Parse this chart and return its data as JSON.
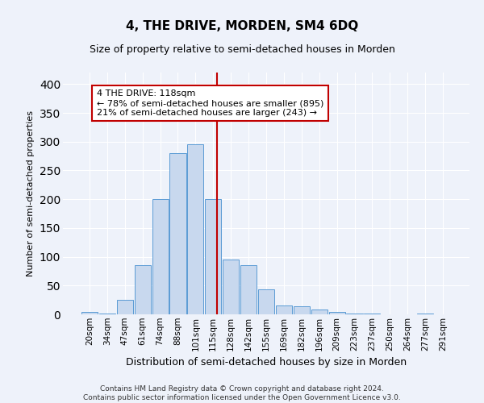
{
  "title": "4, THE DRIVE, MORDEN, SM4 6DQ",
  "subtitle": "Size of property relative to semi-detached houses in Morden",
  "xlabel": "Distribution of semi-detached houses by size in Morden",
  "ylabel": "Number of semi-detached properties",
  "footer_line1": "Contains HM Land Registry data © Crown copyright and database right 2024.",
  "footer_line2": "Contains public sector information licensed under the Open Government Licence v3.0.",
  "bar_labels": [
    "20sqm",
    "34sqm",
    "47sqm",
    "61sqm",
    "74sqm",
    "88sqm",
    "101sqm",
    "115sqm",
    "128sqm",
    "142sqm",
    "155sqm",
    "169sqm",
    "182sqm",
    "196sqm",
    "209sqm",
    "223sqm",
    "237sqm",
    "250sqm",
    "264sqm",
    "277sqm",
    "291sqm"
  ],
  "bar_values": [
    4,
    1,
    25,
    85,
    200,
    280,
    295,
    200,
    95,
    85,
    43,
    16,
    14,
    8,
    4,
    2,
    1,
    0,
    0,
    1,
    0
  ],
  "bar_color": "#c8d8ee",
  "bar_edge_color": "#5b9bd5",
  "ylim": [
    0,
    420
  ],
  "yticks": [
    0,
    50,
    100,
    150,
    200,
    250,
    300,
    350,
    400
  ],
  "property_size": 118,
  "pct_smaller": 78,
  "n_smaller": 895,
  "pct_larger": 21,
  "n_larger": 243,
  "vline_color": "#c00000",
  "annotation_box_color": "#c00000",
  "background_color": "#eef2fa",
  "grid_color": "#ffffff",
  "title_fontsize": 11,
  "subtitle_fontsize": 9,
  "xlabel_fontsize": 9,
  "ylabel_fontsize": 8,
  "tick_fontsize": 7.5,
  "annotation_fontsize": 8,
  "footer_fontsize": 6.5
}
